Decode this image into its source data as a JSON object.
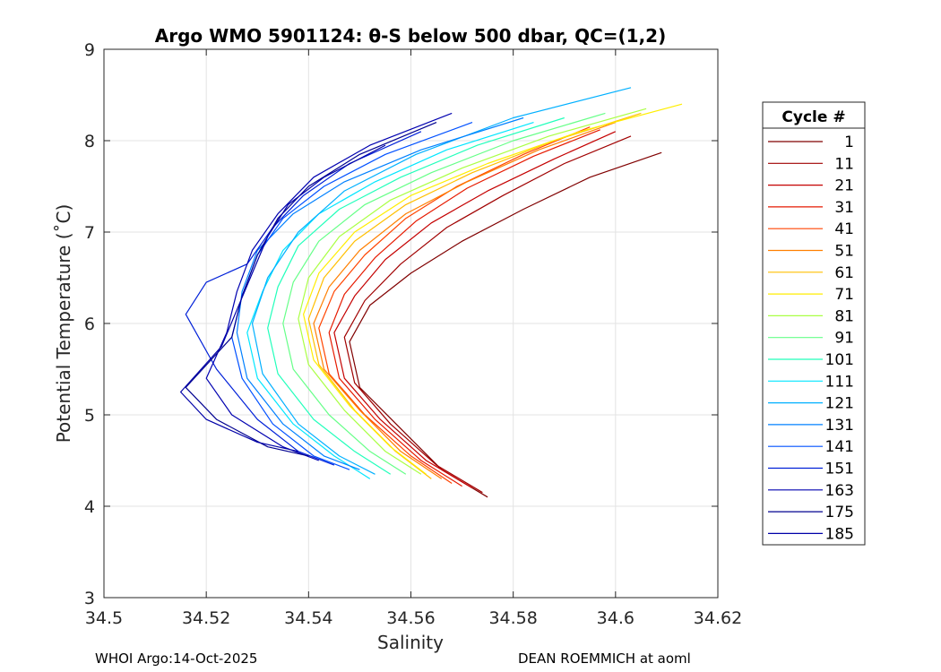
{
  "chart_data": {
    "type": "line",
    "title": "Argo WMO 5901124: θ-S below 500 dbar,  QC=(1,2)",
    "xlabel": "Salinity",
    "ylabel": "Potential Temperature (˚C)",
    "xlim": [
      34.5,
      34.62
    ],
    "ylim": [
      3,
      9
    ],
    "xticks": [
      34.5,
      34.52,
      34.54,
      34.56,
      34.58,
      34.6,
      34.62
    ],
    "xtick_labels": [
      "34.5",
      "34.52",
      "34.54",
      "34.56",
      "34.58",
      "34.6",
      "34.62"
    ],
    "yticks": [
      3,
      4,
      5,
      6,
      7,
      8,
      9
    ],
    "ytick_labels": [
      "3",
      "4",
      "5",
      "6",
      "7",
      "8",
      "9"
    ],
    "grid": true,
    "legend": {
      "title": "Cycle #",
      "placement": "right-outside",
      "entries": [
        {
          "label": "1",
          "color": "#800000"
        },
        {
          "label": "11",
          "color": "#a00000"
        },
        {
          "label": "21",
          "color": "#c40000"
        },
        {
          "label": "31",
          "color": "#e61a00"
        },
        {
          "label": "41",
          "color": "#ff4400"
        },
        {
          "label": "51",
          "color": "#ff7f00"
        },
        {
          "label": "61",
          "color": "#ffbf00"
        },
        {
          "label": "71",
          "color": "#ffee00"
        },
        {
          "label": "81",
          "color": "#aaff44"
        },
        {
          "label": "91",
          "color": "#66ff88"
        },
        {
          "label": "101",
          "color": "#22ffbb"
        },
        {
          "label": "111",
          "color": "#00e6ff"
        },
        {
          "label": "121",
          "color": "#00b0ff"
        },
        {
          "label": "131",
          "color": "#0080ff"
        },
        {
          "label": "141",
          "color": "#0050ff"
        },
        {
          "label": "151",
          "color": "#0020d8"
        },
        {
          "label": "163",
          "color": "#0000b0"
        },
        {
          "label": "175",
          "color": "#000090"
        },
        {
          "label": "185",
          "color": "#0000a8"
        }
      ]
    },
    "series": [
      {
        "name": "1",
        "color": "#800000",
        "x": [
          34.609,
          34.595,
          34.582,
          34.57,
          34.56,
          34.552,
          34.548,
          34.55,
          34.558,
          34.566,
          34.575
        ],
        "y": [
          7.87,
          7.6,
          7.25,
          6.9,
          6.55,
          6.2,
          5.8,
          5.3,
          4.85,
          4.4,
          4.1
        ]
      },
      {
        "name": "11",
        "color": "#a00000",
        "x": [
          34.603,
          34.59,
          34.578,
          34.567,
          34.558,
          34.551,
          34.547,
          34.549,
          34.556,
          34.565,
          34.574
        ],
        "y": [
          8.05,
          7.75,
          7.4,
          7.05,
          6.65,
          6.25,
          5.85,
          5.35,
          4.9,
          4.45,
          4.15
        ]
      },
      {
        "name": "21",
        "color": "#c40000",
        "x": [
          34.6,
          34.588,
          34.575,
          34.564,
          34.555,
          34.549,
          34.545,
          34.547,
          34.554,
          34.563,
          34.572
        ],
        "y": [
          8.1,
          7.8,
          7.45,
          7.1,
          6.7,
          6.3,
          5.9,
          5.4,
          4.95,
          4.5,
          4.2
        ]
      },
      {
        "name": "31",
        "color": "#e61a00",
        "x": [
          34.597,
          34.584,
          34.571,
          34.561,
          34.553,
          34.547,
          34.544,
          34.546,
          34.553,
          34.562,
          34.57
        ],
        "y": [
          8.12,
          7.83,
          7.48,
          7.12,
          6.72,
          6.32,
          5.9,
          5.4,
          4.95,
          4.5,
          4.22
        ]
      },
      {
        "name": "41",
        "color": "#ff4400",
        "x": [
          34.595,
          34.582,
          34.569,
          34.559,
          34.551,
          34.545,
          34.542,
          34.544,
          34.551,
          34.56,
          34.568
        ],
        "y": [
          8.15,
          7.85,
          7.5,
          7.15,
          6.75,
          6.35,
          5.95,
          5.45,
          5.0,
          4.55,
          4.25
        ]
      },
      {
        "name": "51",
        "color": "#ff7f00",
        "x": [
          34.6,
          34.585,
          34.571,
          34.559,
          34.55,
          34.544,
          34.541,
          34.543,
          34.55,
          34.558,
          34.566
        ],
        "y": [
          8.2,
          7.9,
          7.55,
          7.2,
          6.8,
          6.4,
          6.0,
          5.5,
          5.05,
          4.6,
          4.3
        ]
      },
      {
        "name": "61",
        "color": "#ffbf00",
        "x": [
          34.605,
          34.588,
          34.572,
          34.559,
          34.549,
          34.543,
          34.54,
          34.542,
          34.549,
          34.557,
          34.564
        ],
        "y": [
          8.3,
          8.0,
          7.65,
          7.3,
          6.9,
          6.5,
          6.05,
          5.55,
          5.05,
          4.6,
          4.3
        ]
      },
      {
        "name": "71",
        "color": "#ffee00",
        "x": [
          34.613,
          34.593,
          34.575,
          34.56,
          34.549,
          34.542,
          34.539,
          34.541,
          34.548,
          34.556,
          34.563
        ],
        "y": [
          8.4,
          8.1,
          7.75,
          7.4,
          7.0,
          6.55,
          6.1,
          5.6,
          5.1,
          4.65,
          4.35
        ]
      },
      {
        "name": "81",
        "color": "#aaff44",
        "x": [
          34.606,
          34.587,
          34.57,
          34.556,
          34.546,
          34.54,
          34.538,
          34.54,
          34.547,
          34.555,
          34.562
        ],
        "y": [
          8.35,
          8.05,
          7.7,
          7.35,
          6.95,
          6.5,
          6.05,
          5.55,
          5.05,
          4.6,
          4.35
        ]
      },
      {
        "name": "91",
        "color": "#66ff88",
        "x": [
          34.598,
          34.58,
          34.564,
          34.551,
          34.542,
          34.537,
          34.535,
          34.537,
          34.544,
          34.552,
          34.559
        ],
        "y": [
          8.3,
          8.0,
          7.65,
          7.3,
          6.9,
          6.45,
          6.0,
          5.5,
          5.0,
          4.6,
          4.35
        ]
      },
      {
        "name": "101",
        "color": "#22ffbb",
        "x": [
          34.59,
          34.573,
          34.558,
          34.546,
          34.538,
          34.534,
          34.532,
          34.534,
          34.541,
          34.549,
          34.556
        ],
        "y": [
          8.25,
          7.95,
          7.6,
          7.25,
          6.85,
          6.4,
          5.95,
          5.45,
          4.95,
          4.6,
          4.35
        ]
      },
      {
        "name": "111",
        "color": "#00e6ff",
        "x": [
          34.584,
          34.567,
          34.553,
          34.542,
          34.535,
          34.531,
          34.528,
          34.53,
          34.537,
          34.545,
          34.552
        ],
        "y": [
          8.2,
          7.9,
          7.55,
          7.2,
          6.8,
          6.35,
          5.9,
          5.4,
          4.9,
          4.55,
          4.3
        ]
      },
      {
        "name": "121",
        "color": "#00b0ff",
        "x": [
          34.603,
          34.58,
          34.561,
          34.547,
          34.538,
          34.532,
          34.529,
          34.531,
          34.538,
          34.546,
          34.553
        ],
        "y": [
          8.58,
          8.25,
          7.85,
          7.45,
          7.0,
          6.5,
          6.0,
          5.45,
          4.9,
          4.55,
          4.35
        ]
      },
      {
        "name": "131",
        "color": "#0080ff",
        "x": [
          34.582,
          34.562,
          34.547,
          34.537,
          34.53,
          34.527,
          34.526,
          34.528,
          34.535,
          34.543,
          34.55
        ],
        "y": [
          8.25,
          7.9,
          7.55,
          7.2,
          6.8,
          6.35,
          5.9,
          5.4,
          4.9,
          4.55,
          4.4
        ]
      },
      {
        "name": "141",
        "color": "#0050ff",
        "x": [
          34.572,
          34.555,
          34.543,
          34.535,
          34.53,
          34.527,
          34.525,
          34.527,
          34.533,
          34.541,
          34.548
        ],
        "y": [
          8.2,
          7.85,
          7.5,
          7.15,
          6.75,
          6.3,
          5.85,
          5.4,
          4.9,
          4.55,
          4.4
        ]
      },
      {
        "name": "151",
        "color": "#0020d8",
        "x": [
          34.562,
          34.548,
          34.539,
          34.533,
          34.528,
          34.52,
          34.516,
          34.522,
          34.53,
          34.538,
          34.545
        ],
        "y": [
          8.1,
          7.75,
          7.4,
          7.05,
          6.65,
          6.45,
          6.1,
          5.5,
          4.95,
          4.6,
          4.45
        ]
      },
      {
        "name": "163",
        "color": "#0000b0",
        "x": [
          34.568,
          34.552,
          34.541,
          34.534,
          34.529,
          34.526,
          34.524,
          34.52,
          34.525,
          34.535,
          34.542
        ],
        "y": [
          8.3,
          7.95,
          7.6,
          7.2,
          6.8,
          6.35,
          5.9,
          5.4,
          5.0,
          4.65,
          4.5
        ]
      },
      {
        "name": "175",
        "color": "#000090",
        "x": [
          34.565,
          34.55,
          34.54,
          34.534,
          34.53,
          34.527,
          34.525,
          34.516,
          34.522,
          34.532,
          34.54
        ],
        "y": [
          8.2,
          7.85,
          7.5,
          7.15,
          6.75,
          6.3,
          5.85,
          5.3,
          4.95,
          4.65,
          4.55
        ]
      },
      {
        "name": "185",
        "color": "#0000a8",
        "x": [
          34.555,
          34.543,
          34.536,
          34.532,
          34.529,
          34.526,
          34.523,
          34.515,
          34.52,
          34.53,
          34.538
        ],
        "y": [
          7.95,
          7.6,
          7.3,
          6.95,
          6.55,
          6.15,
          5.75,
          5.25,
          4.95,
          4.7,
          4.6
        ]
      }
    ]
  },
  "footer": {
    "left": "WHOI Argo:14-Oct-2025",
    "right": "DEAN ROEMMICH at aoml"
  }
}
